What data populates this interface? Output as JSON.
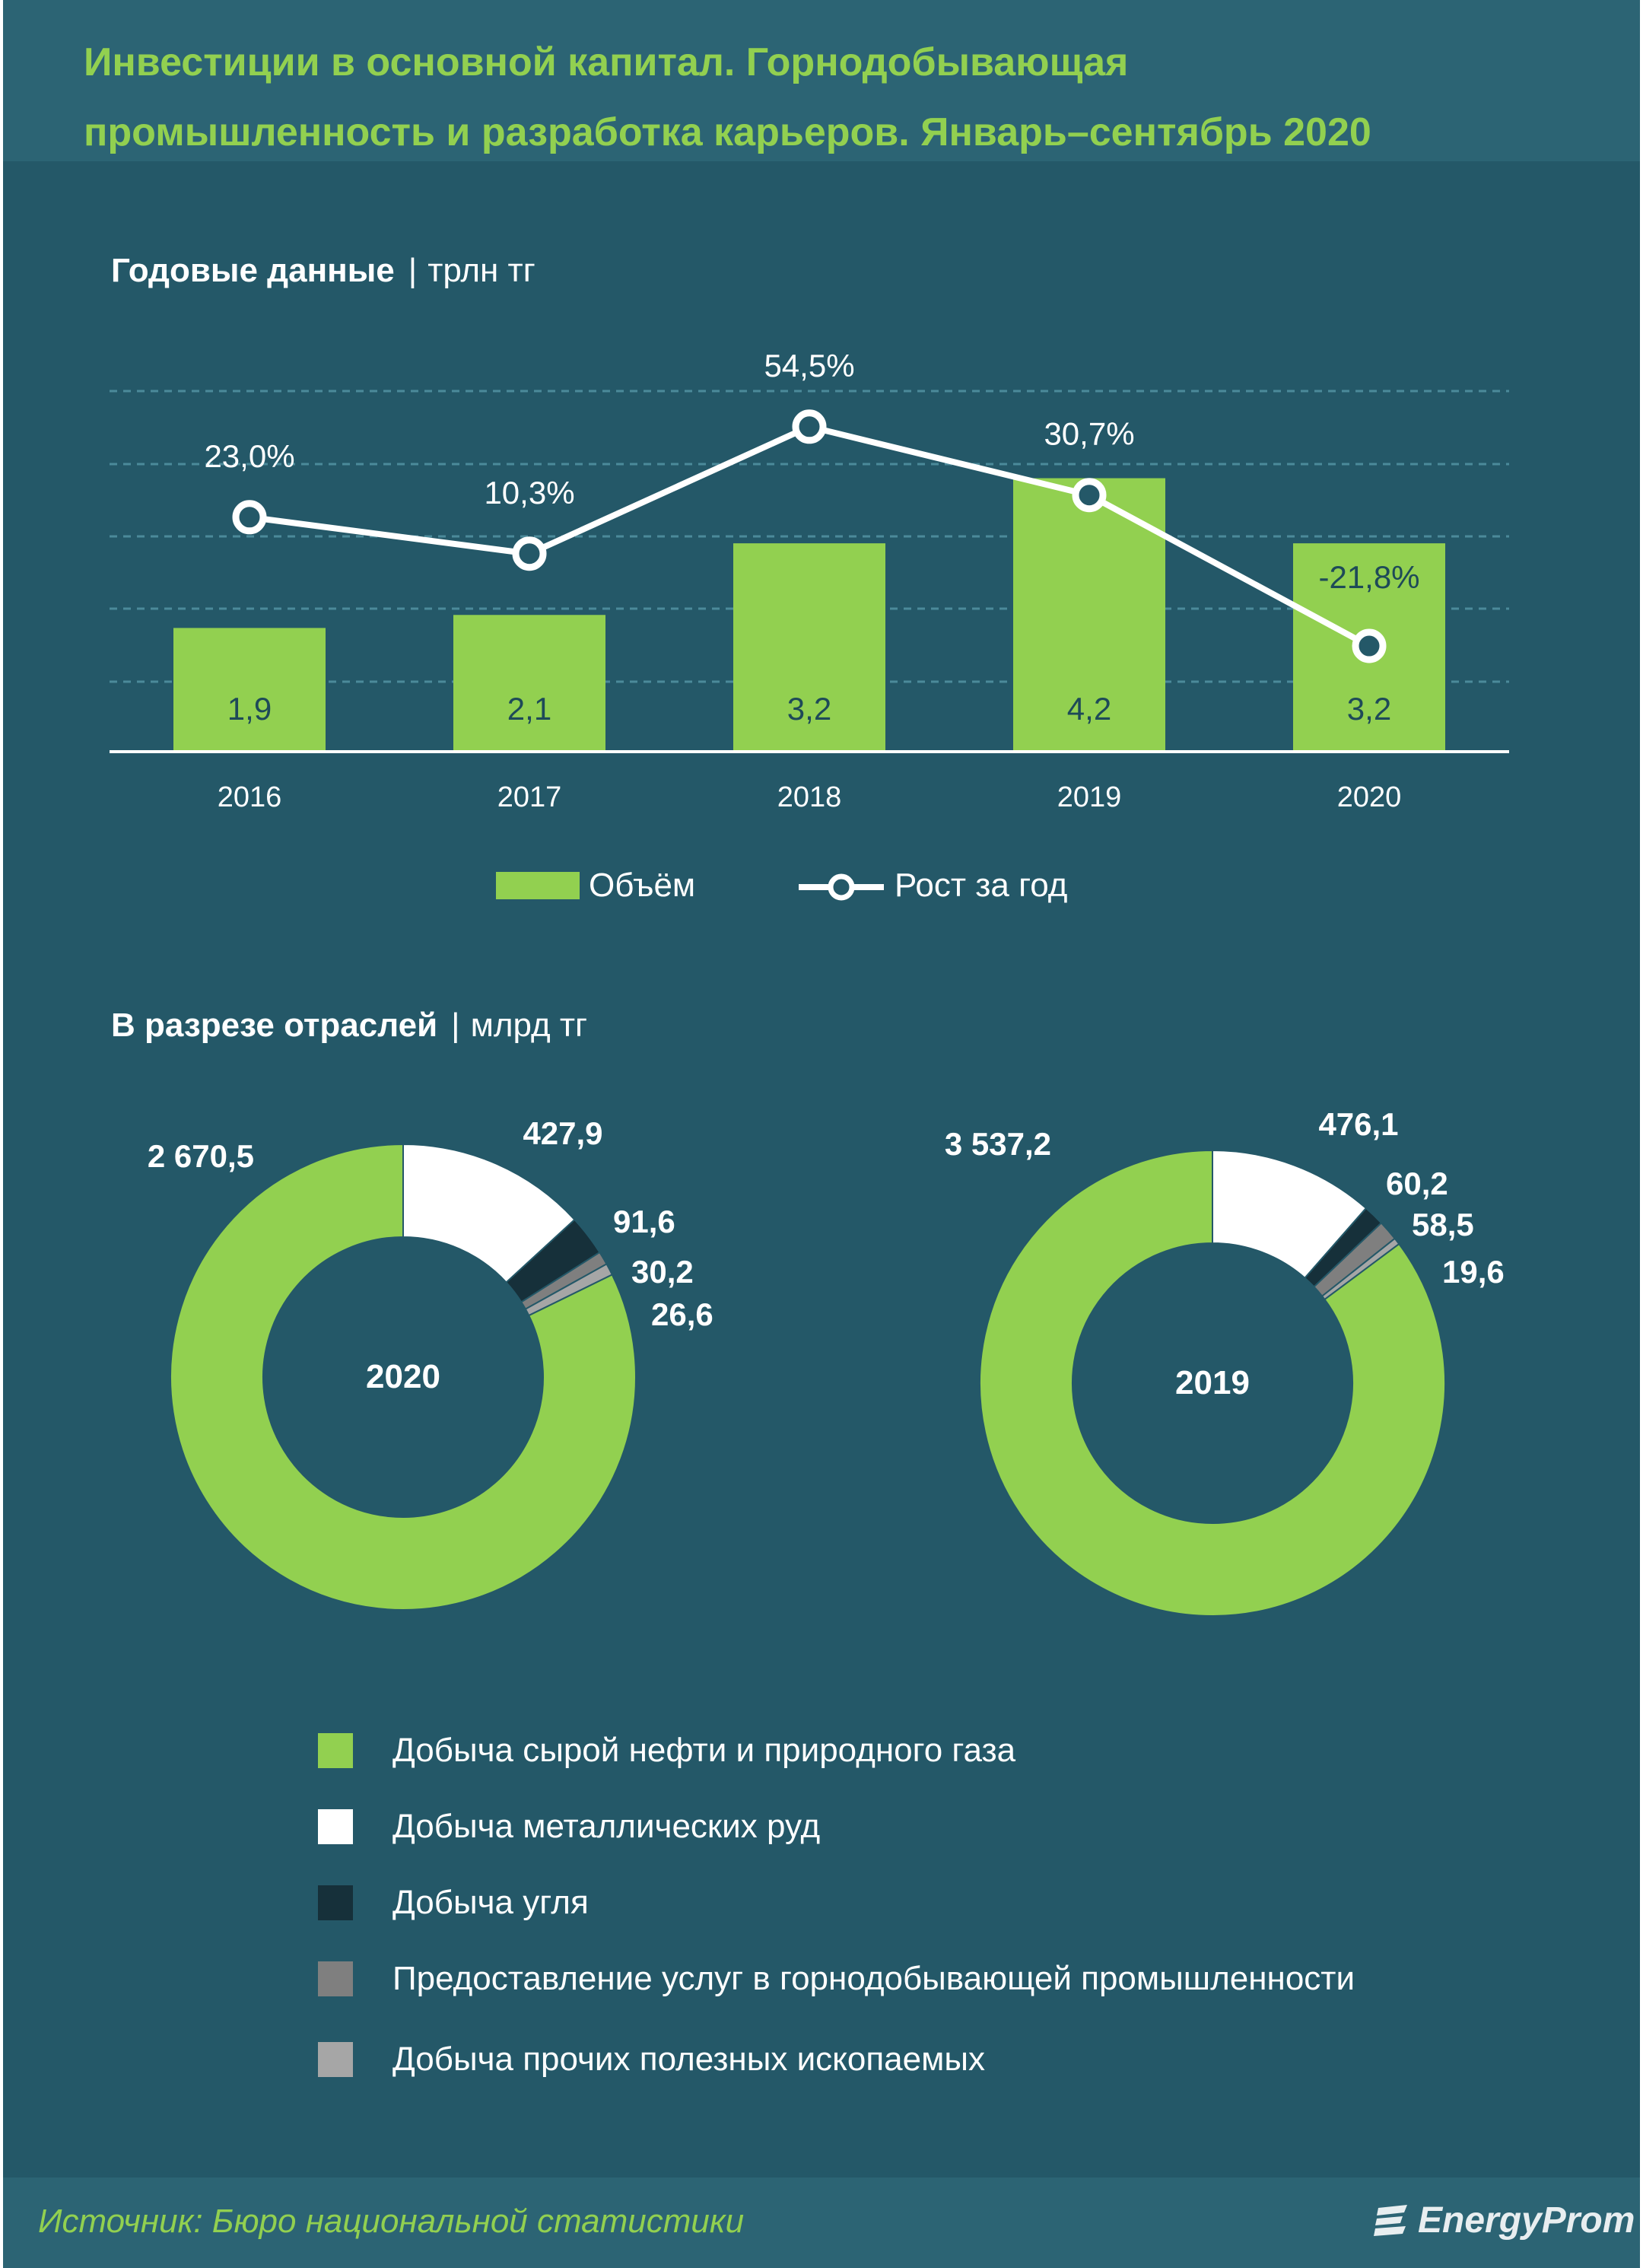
{
  "title": "Инвестиции в основной капитал. Горнодобывающая\nпромышленность и разработка карьеров. Январь–сентябрь 2020",
  "colors": {
    "background": "#245868",
    "header": "#2c6474",
    "accent_green": "#92d050",
    "white": "#ffffff",
    "coal": "#16303a",
    "services": "#7f7f7f",
    "other": "#a6a6a6"
  },
  "section_annual": {
    "title": "Годовые данные",
    "unit": "трлн тг"
  },
  "section_industries": {
    "title": "В разрезе отраслей",
    "unit": "млрд тг"
  },
  "chart_data": [
    {
      "type": "bar",
      "title": "Годовые данные",
      "unit": "трлн тг",
      "categories": [
        "2016",
        "2017",
        "2018",
        "2019",
        "2020"
      ],
      "series": [
        {
          "name": "Объём",
          "type": "bar",
          "values": [
            1.9,
            2.1,
            3.2,
            4.2,
            3.2
          ],
          "labels": [
            "1,9",
            "2,1",
            "3,2",
            "4,2",
            "3,2"
          ],
          "color": "#92d050"
        },
        {
          "name": "Рост за год",
          "type": "line",
          "values": [
            23.0,
            10.3,
            54.5,
            30.7,
            -21.8
          ],
          "labels": [
            "23,0%",
            "10,3%",
            "54,5%",
            "30,7%",
            "-21,8%"
          ],
          "color": "#ffffff"
        }
      ],
      "grid": true,
      "legend": "bottom"
    },
    {
      "type": "pie",
      "variant": "donut",
      "center_label": "2020",
      "unit": "млрд тг",
      "categories": [
        "Добыча сырой нефти и природного газа",
        "Добыча металлических руд",
        "Добыча угля",
        "Предоставление услуг в горнодобывающей промышленности",
        "Добыча прочих полезных ископаемых"
      ],
      "values": [
        2670.5,
        427.9,
        91.6,
        30.2,
        26.6
      ],
      "labels": [
        "2 670,5",
        "427,9",
        "91,6",
        "30,2",
        "26,6"
      ]
    },
    {
      "type": "pie",
      "variant": "donut",
      "center_label": "2019",
      "unit": "млрд тг",
      "categories": [
        "Добыча сырой нефти и природного газа",
        "Добыча металлических руд",
        "Добыча угля",
        "Предоставление услуг в горнодобывающей промышленности",
        "Добыча прочих полезных ископаемых"
      ],
      "values": [
        3537.2,
        476.1,
        60.2,
        58.5,
        19.6
      ],
      "labels": [
        "3 537,2",
        "476,1",
        "60,2",
        "58,5",
        "19,6"
      ]
    }
  ],
  "donut_legend": [
    {
      "label": "Добыча сырой нефти и природного газа",
      "color": "#92d050"
    },
    {
      "label": "Добыча металлических руд",
      "color": "#ffffff"
    },
    {
      "label": "Добыча угля",
      "color": "#16303a"
    },
    {
      "label": "Предоставление услуг в горнодобывающей промышленности",
      "color": "#7f7f7f"
    },
    {
      "label": "Добыча прочих полезных ископаемых",
      "color": "#a6a6a6"
    }
  ],
  "source": "Источник: Бюро национальной  статистики",
  "brand": "EnergyProm"
}
